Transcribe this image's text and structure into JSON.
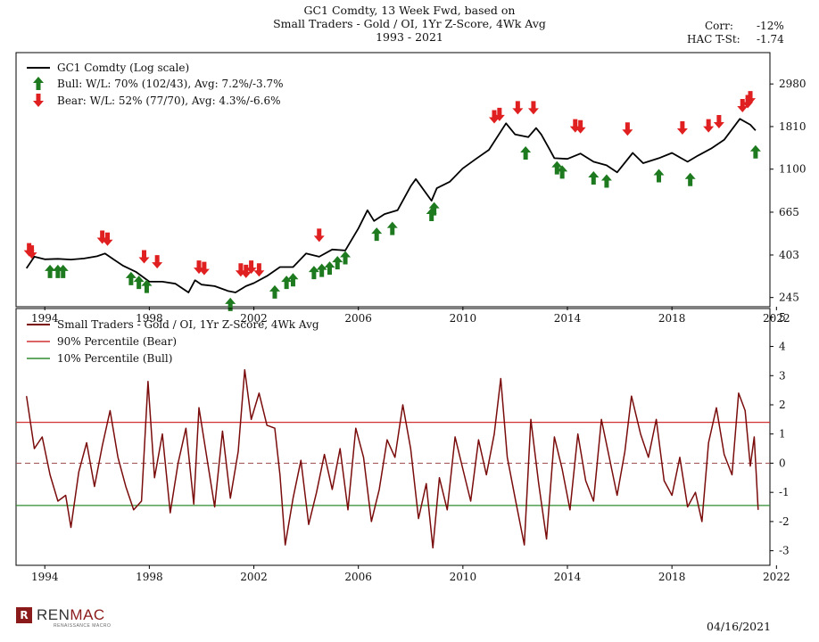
{
  "header": {
    "title_line1": "GC1 Comdty, 13 Week Fwd, based on",
    "title_line2": "Small Traders - Gold / OI, 1Yr Z-Score, 4Wk Avg",
    "title_line3": "1993 - 2021",
    "corr_label": "Corr:",
    "corr_value": "-12%",
    "hac_label": "HAC T-St:",
    "hac_value": "-1.74"
  },
  "footer": {
    "logo_prefix": "REN",
    "logo_suffix": "MAC",
    "logo_mark": "R",
    "logo_subtitle": "RENAISSANCE MACRO",
    "date": "04/16/2021"
  },
  "colors": {
    "price_line": "#000000",
    "bull": "#1e7a1e",
    "bear": "#e02020",
    "indicator": "#7a0c0c",
    "bear_line": "#d03030",
    "bull_line": "#2e8b2e"
  },
  "chart_data": [
    {
      "type": "line",
      "panel": "top",
      "scale": "log",
      "legend": [
        {
          "name": "GC1 Comdty (Log scale)"
        },
        {
          "name": "Bull:  W/L: 70% (102/43), Avg: 7.2%/-3.7%"
        },
        {
          "name": "Bear:  W/L: 52% (77/70), Avg: 4.3%/-6.6%"
        }
      ],
      "xlim": [
        1992.9,
        2021.75
      ],
      "ylim": [
        220,
        4300
      ],
      "yticks": [
        245,
        403,
        665,
        1100,
        1810,
        2980
      ],
      "xticks": [
        1994,
        1998,
        2002,
        2006,
        2010,
        2014,
        2018,
        2022
      ],
      "series": [
        {
          "name": "GC1 Comdty",
          "points": [
            [
              1993.3,
              345
            ],
            [
              1993.6,
              395
            ],
            [
              1994.0,
              383
            ],
            [
              1994.5,
              385
            ],
            [
              1995.0,
              382
            ],
            [
              1995.5,
              387
            ],
            [
              1996.0,
              397
            ],
            [
              1996.3,
              410
            ],
            [
              1996.6,
              385
            ],
            [
              1997.0,
              355
            ],
            [
              1997.5,
              330
            ],
            [
              1998.0,
              295
            ],
            [
              1998.5,
              295
            ],
            [
              1999.0,
              288
            ],
            [
              1999.5,
              260
            ],
            [
              1999.75,
              300
            ],
            [
              2000.0,
              285
            ],
            [
              2000.5,
              280
            ],
            [
              2001.0,
              265
            ],
            [
              2001.3,
              260
            ],
            [
              2001.7,
              280
            ],
            [
              2002.0,
              290
            ],
            [
              2002.5,
              315
            ],
            [
              2003.0,
              350
            ],
            [
              2003.5,
              350
            ],
            [
              2004.0,
              410
            ],
            [
              2004.5,
              395
            ],
            [
              2005.0,
              430
            ],
            [
              2005.5,
              425
            ],
            [
              2006.0,
              550
            ],
            [
              2006.35,
              680
            ],
            [
              2006.6,
              600
            ],
            [
              2007.0,
              650
            ],
            [
              2007.5,
              680
            ],
            [
              2008.0,
              900
            ],
            [
              2008.2,
              980
            ],
            [
              2008.8,
              760
            ],
            [
              2009.0,
              880
            ],
            [
              2009.5,
              950
            ],
            [
              2010.0,
              1110
            ],
            [
              2010.5,
              1240
            ],
            [
              2011.0,
              1380
            ],
            [
              2011.65,
              1880
            ],
            [
              2012.0,
              1650
            ],
            [
              2012.5,
              1600
            ],
            [
              2012.8,
              1780
            ],
            [
              2013.0,
              1650
            ],
            [
              2013.3,
              1400
            ],
            [
              2013.5,
              1250
            ],
            [
              2014.0,
              1240
            ],
            [
              2014.5,
              1320
            ],
            [
              2015.0,
              1200
            ],
            [
              2015.5,
              1150
            ],
            [
              2015.9,
              1060
            ],
            [
              2016.5,
              1330
            ],
            [
              2016.9,
              1180
            ],
            [
              2017.5,
              1250
            ],
            [
              2018.0,
              1330
            ],
            [
              2018.6,
              1200
            ],
            [
              2019.0,
              1290
            ],
            [
              2019.5,
              1400
            ],
            [
              2020.0,
              1550
            ],
            [
              2020.6,
              1980
            ],
            [
              2021.0,
              1850
            ],
            [
              2021.2,
              1730
            ]
          ]
        }
      ],
      "bull_signals": [
        [
          1994.2,
          375
        ],
        [
          1994.5,
          375
        ],
        [
          1994.7,
          375
        ],
        [
          1997.3,
          345
        ],
        [
          1997.6,
          330
        ],
        [
          1997.9,
          315
        ],
        [
          2001.1,
          255
        ],
        [
          2002.8,
          295
        ],
        [
          2003.25,
          330
        ],
        [
          2003.5,
          340
        ],
        [
          2004.3,
          370
        ],
        [
          2004.6,
          380
        ],
        [
          2004.9,
          390
        ],
        [
          2005.2,
          415
        ],
        [
          2005.5,
          440
        ],
        [
          2006.7,
          580
        ],
        [
          2007.3,
          620
        ],
        [
          2008.8,
          730
        ],
        [
          2008.9,
          780
        ],
        [
          2012.4,
          1500
        ],
        [
          2013.6,
          1260
        ],
        [
          2013.8,
          1200
        ],
        [
          2015.0,
          1120
        ],
        [
          2015.5,
          1080
        ],
        [
          2017.5,
          1150
        ],
        [
          2018.7,
          1100
        ],
        [
          2021.2,
          1520
        ]
      ],
      "bear_signals": [
        [
          1993.4,
          380
        ],
        [
          1993.5,
          370
        ],
        [
          1996.2,
          440
        ],
        [
          1996.4,
          430
        ],
        [
          1997.8,
          350
        ],
        [
          1998.3,
          330
        ],
        [
          1999.9,
          310
        ],
        [
          2000.1,
          305
        ],
        [
          2001.5,
          300
        ],
        [
          2001.7,
          295
        ],
        [
          2001.9,
          310
        ],
        [
          2002.2,
          300
        ],
        [
          2004.5,
          450
        ],
        [
          2011.2,
          1800
        ],
        [
          2011.4,
          1850
        ],
        [
          2012.1,
          2000
        ],
        [
          2012.7,
          2000
        ],
        [
          2014.3,
          1620
        ],
        [
          2014.5,
          1600
        ],
        [
          2016.3,
          1560
        ],
        [
          2018.4,
          1580
        ],
        [
          2019.4,
          1620
        ],
        [
          2019.8,
          1700
        ],
        [
          2020.7,
          2050
        ],
        [
          2020.9,
          2150
        ],
        [
          2021.0,
          2250
        ]
      ]
    },
    {
      "type": "line",
      "panel": "bottom",
      "legend": [
        {
          "name": "Small Traders - Gold / OI, 1Yr Z-Score, 4Wk Avg"
        },
        {
          "name": "90% Percentile (Bear)"
        },
        {
          "name": "10% Percentile (Bull)"
        }
      ],
      "xlim": [
        1992.9,
        2021.75
      ],
      "ylim": [
        -3.5,
        5.3
      ],
      "yticks": [
        -3,
        -2,
        -1,
        0,
        1,
        2,
        3,
        4,
        5
      ],
      "xticks": [
        1994,
        1998,
        2002,
        2006,
        2010,
        2014,
        2018,
        2022
      ],
      "xtick_labels": [
        "1994",
        "1998",
        "2002",
        "2006",
        "2010",
        "2014",
        "2018",
        "2022"
      ],
      "reference_lines": {
        "bear_90pct": 1.4,
        "bull_10pct": -1.45,
        "zero": 0
      },
      "series": [
        {
          "name": "Z-Score",
          "points": [
            [
              1993.3,
              2.3
            ],
            [
              1993.6,
              0.5
            ],
            [
              1993.9,
              0.9
            ],
            [
              1994.2,
              -0.4
            ],
            [
              1994.5,
              -1.3
            ],
            [
              1994.8,
              -1.1
            ],
            [
              1995.0,
              -2.2
            ],
            [
              1995.3,
              -0.3
            ],
            [
              1995.6,
              0.7
            ],
            [
              1995.9,
              -0.8
            ],
            [
              1996.2,
              0.6
            ],
            [
              1996.5,
              1.8
            ],
            [
              1996.8,
              0.2
            ],
            [
              1997.1,
              -0.8
            ],
            [
              1997.4,
              -1.6
            ],
            [
              1997.7,
              -1.3
            ],
            [
              1997.95,
              2.8
            ],
            [
              1998.2,
              -0.5
            ],
            [
              1998.5,
              1.0
            ],
            [
              1998.8,
              -1.7
            ],
            [
              1999.1,
              0.0
            ],
            [
              1999.4,
              1.2
            ],
            [
              1999.7,
              -1.4
            ],
            [
              1999.9,
              1.9
            ],
            [
              2000.2,
              0.2
            ],
            [
              2000.5,
              -1.5
            ],
            [
              2000.8,
              1.1
            ],
            [
              2001.1,
              -1.2
            ],
            [
              2001.4,
              0.4
            ],
            [
              2001.65,
              3.2
            ],
            [
              2001.9,
              1.5
            ],
            [
              2002.2,
              2.4
            ],
            [
              2002.5,
              1.3
            ],
            [
              2002.8,
              1.2
            ],
            [
              2003.0,
              -0.4
            ],
            [
              2003.2,
              -2.8
            ],
            [
              2003.5,
              -1.2
            ],
            [
              2003.8,
              0.1
            ],
            [
              2004.1,
              -2.1
            ],
            [
              2004.4,
              -1.0
            ],
            [
              2004.7,
              0.3
            ],
            [
              2005.0,
              -0.9
            ],
            [
              2005.3,
              0.5
            ],
            [
              2005.6,
              -1.6
            ],
            [
              2005.9,
              1.2
            ],
            [
              2006.2,
              0.2
            ],
            [
              2006.5,
              -2.0
            ],
            [
              2006.8,
              -0.9
            ],
            [
              2007.1,
              0.8
            ],
            [
              2007.4,
              0.2
            ],
            [
              2007.7,
              2.0
            ],
            [
              2008.0,
              0.5
            ],
            [
              2008.3,
              -1.9
            ],
            [
              2008.6,
              -0.7
            ],
            [
              2008.85,
              -2.9
            ],
            [
              2009.1,
              -0.5
            ],
            [
              2009.4,
              -1.6
            ],
            [
              2009.7,
              0.9
            ],
            [
              2010.0,
              -0.2
            ],
            [
              2010.3,
              -1.3
            ],
            [
              2010.6,
              0.8
            ],
            [
              2010.9,
              -0.4
            ],
            [
              2011.2,
              1.0
            ],
            [
              2011.45,
              2.9
            ],
            [
              2011.7,
              0.2
            ],
            [
              2012.0,
              -1.2
            ],
            [
              2012.35,
              -2.8
            ],
            [
              2012.6,
              1.5
            ],
            [
              2012.9,
              -0.7
            ],
            [
              2013.2,
              -2.6
            ],
            [
              2013.5,
              0.9
            ],
            [
              2013.8,
              -0.2
            ],
            [
              2014.1,
              -1.6
            ],
            [
              2014.4,
              1.0
            ],
            [
              2014.7,
              -0.6
            ],
            [
              2015.0,
              -1.3
            ],
            [
              2015.3,
              1.5
            ],
            [
              2015.6,
              0.2
            ],
            [
              2015.9,
              -1.1
            ],
            [
              2016.2,
              0.4
            ],
            [
              2016.45,
              2.3
            ],
            [
              2016.8,
              1.0
            ],
            [
              2017.1,
              0.2
            ],
            [
              2017.4,
              1.5
            ],
            [
              2017.7,
              -0.6
            ],
            [
              2018.0,
              -1.1
            ],
            [
              2018.3,
              0.2
            ],
            [
              2018.6,
              -1.5
            ],
            [
              2018.9,
              -1.0
            ],
            [
              2019.15,
              -2.0
            ],
            [
              2019.4,
              0.7
            ],
            [
              2019.7,
              1.9
            ],
            [
              2020.0,
              0.3
            ],
            [
              2020.3,
              -0.4
            ],
            [
              2020.55,
              2.4
            ],
            [
              2020.8,
              1.8
            ],
            [
              2021.0,
              -0.1
            ],
            [
              2021.15,
              0.9
            ],
            [
              2021.3,
              -1.6
            ]
          ]
        }
      ]
    }
  ]
}
